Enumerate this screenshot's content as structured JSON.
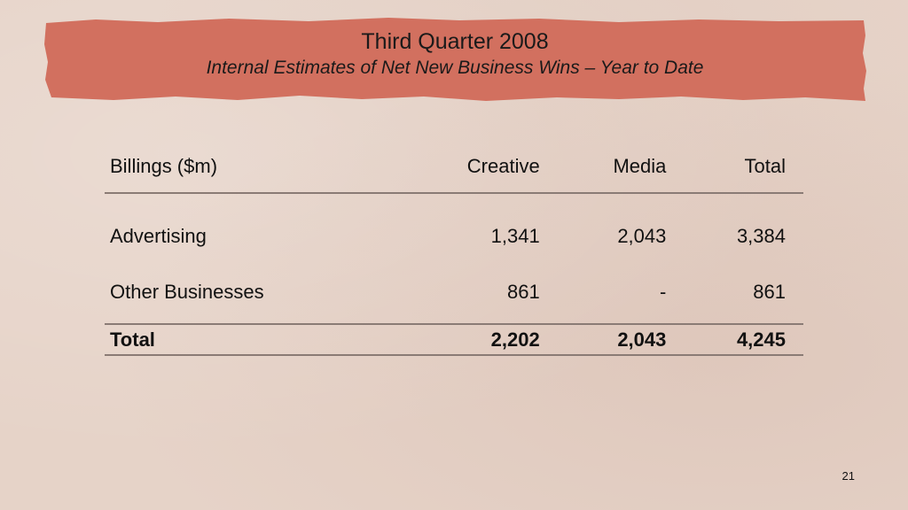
{
  "slide": {
    "title": "Third Quarter 2008",
    "subtitle": "Internal Estimates of Net New Business Wins – Year to Date",
    "banner_color": "#d2705f",
    "page_number": "21"
  },
  "table": {
    "headers": [
      "Billings ($m)",
      "Creative",
      "Media",
      "Total"
    ],
    "rows": [
      {
        "label": "Advertising",
        "creative": "1,341",
        "media": "2,043",
        "total": "3,384"
      },
      {
        "label": "Other Businesses",
        "creative": "861",
        "media": "-",
        "total": "861"
      }
    ],
    "total_row": {
      "label": "Total",
      "creative": "2,202",
      "media": "2,043",
      "total": "4,245"
    }
  }
}
